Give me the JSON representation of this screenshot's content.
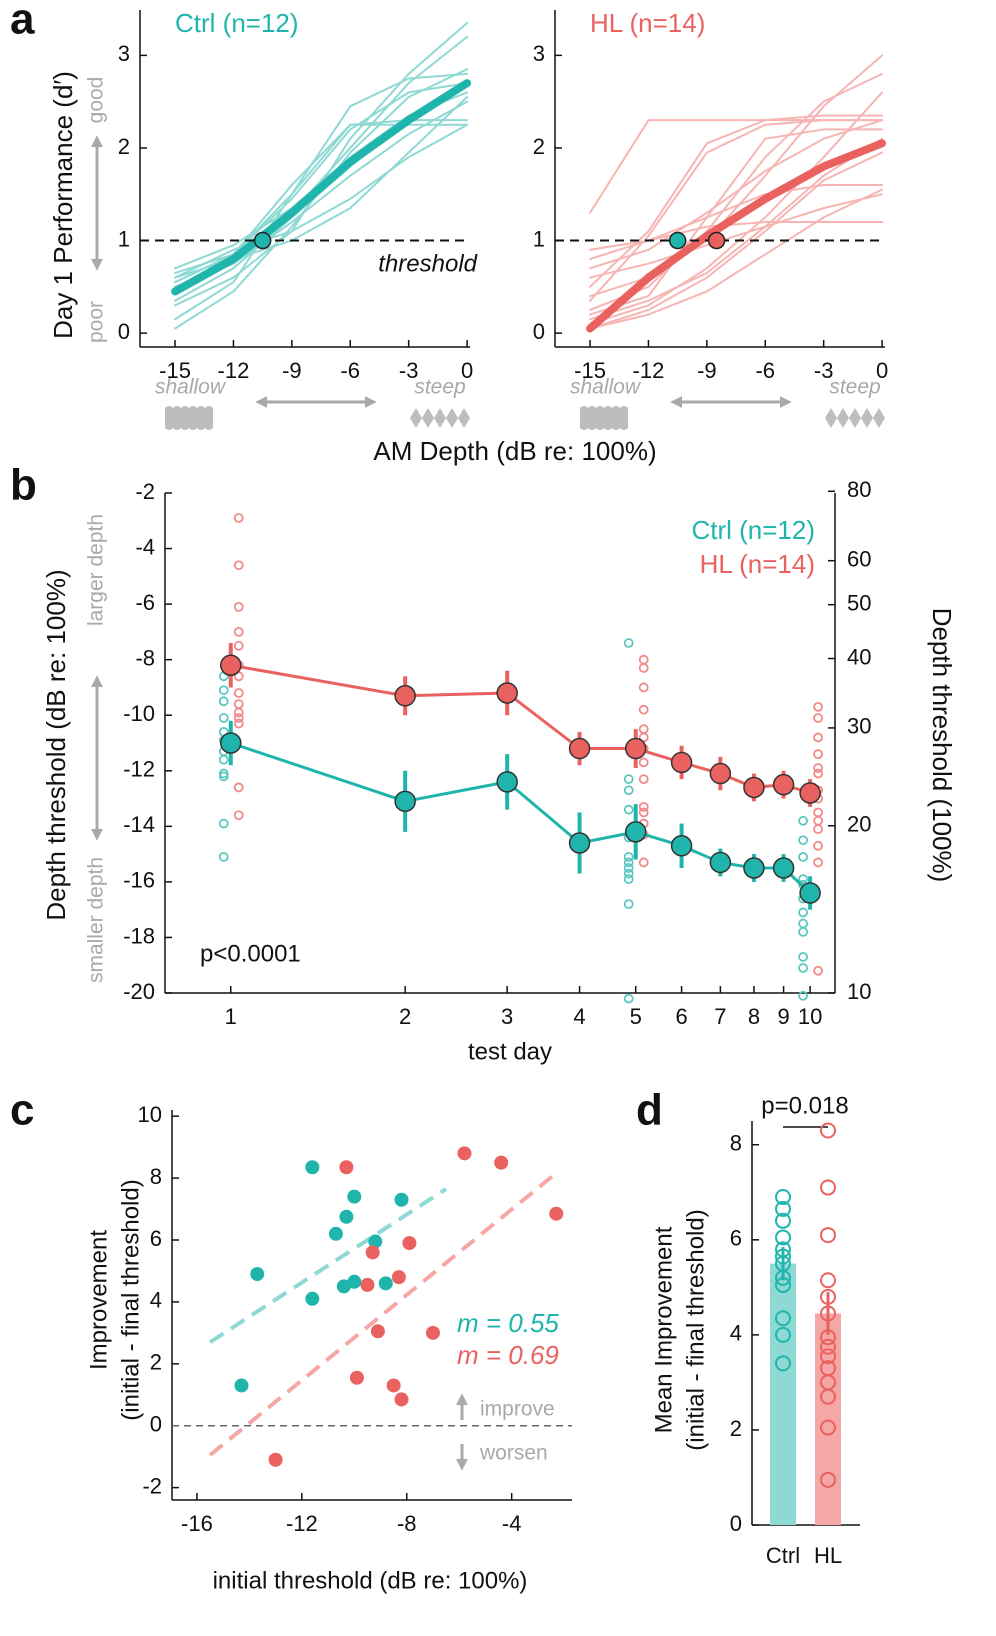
{
  "chart_data": [
    {
      "type": "line",
      "panel_label": "a",
      "title": "Ctrl (n=12)",
      "title_color": "#1fb5ac",
      "y_label": "Day 1 Performance (d′)",
      "x_label": "AM Depth (dB re: 100%)",
      "annotations": {
        "good": "good",
        "poor": "poor",
        "shallow": "shallow",
        "steep": "steep",
        "threshold": "threshold"
      },
      "x": [
        -15,
        -12,
        -9,
        -6,
        -3,
        0
      ],
      "xlim": [
        -16.8,
        0.15
      ],
      "xticks": [
        -15,
        -12,
        -9,
        -6,
        -3,
        0
      ],
      "ylim": [
        -0.15,
        3.49
      ],
      "yticks": [
        0,
        1,
        2,
        3
      ],
      "threshold": 1,
      "series": [
        {
          "color": "#8ed9d4",
          "values": [
            0.15,
            0.55,
            1.5,
            2.45,
            2.75,
            2.8
          ]
        },
        {
          "color": "#8ed9d4",
          "values": [
            0.3,
            0.6,
            1.1,
            2.1,
            2.8,
            3.35
          ]
        },
        {
          "color": "#8ed9d4",
          "values": [
            0.6,
            0.8,
            1.3,
            2.0,
            2.7,
            3.2
          ]
        },
        {
          "color": "#8ed9d4",
          "values": [
            0.65,
            0.85,
            1.5,
            2.25,
            2.3,
            2.3
          ]
        },
        {
          "color": "#8ed9d4",
          "values": [
            0.55,
            0.85,
            1.6,
            2.25,
            2.25,
            2.25
          ]
        },
        {
          "color": "#8ed9d4",
          "values": [
            0.7,
            0.95,
            1.35,
            1.9,
            2.35,
            2.6
          ]
        },
        {
          "color": "#8ed9d4",
          "values": [
            0.5,
            0.75,
            1.2,
            1.7,
            2.15,
            2.5
          ]
        },
        {
          "color": "#8ed9d4",
          "values": [
            0.35,
            0.7,
            1.25,
            1.8,
            2.3,
            2.7
          ]
        },
        {
          "color": "#8ed9d4",
          "values": [
            0.6,
            0.9,
            1.1,
            1.45,
            1.9,
            2.25
          ]
        },
        {
          "color": "#8ed9d4",
          "values": [
            0.05,
            0.45,
            1.15,
            1.95,
            2.55,
            2.85
          ]
        },
        {
          "color": "#8ed9d4",
          "values": [
            0.45,
            0.8,
            1.0,
            1.35,
            1.95,
            2.55
          ]
        },
        {
          "color": "#8ed9d4",
          "values": [
            0.55,
            0.85,
            1.45,
            2.2,
            2.6,
            2.7
          ]
        },
        {
          "color": "#1fb5ac",
          "bold": true,
          "values": [
            0.45,
            0.8,
            1.3,
            1.85,
            2.3,
            2.7
          ]
        }
      ],
      "markers": [
        {
          "x": -10.5,
          "y": 1,
          "color": "#1fb5ac"
        }
      ]
    },
    {
      "type": "line",
      "title": "HL (n=14)",
      "title_color": "#e9625f",
      "annotations": {
        "shallow": "shallow",
        "steep": "steep"
      },
      "x": [
        -15,
        -12,
        -9,
        -6,
        -3,
        0
      ],
      "xlim": [
        -16.8,
        0.15
      ],
      "xticks": [
        -15,
        -12,
        -9,
        -6,
        -3,
        0
      ],
      "ylim": [
        -0.15,
        3.49
      ],
      "yticks": [
        0,
        1,
        2,
        3
      ],
      "threshold": 1,
      "series": [
        {
          "color": "#f6b5b3",
          "values": [
            0.9,
            1.0,
            1.15,
            1.2,
            1.2,
            1.2
          ]
        },
        {
          "color": "#f6b5b3",
          "values": [
            0.8,
            1.0,
            1.25,
            1.5,
            1.6,
            1.6
          ]
        },
        {
          "color": "#f6b5b3",
          "values": [
            0.5,
            1.1,
            2.05,
            2.3,
            2.35,
            2.35
          ]
        },
        {
          "color": "#f6b5b3",
          "values": [
            1.3,
            2.3,
            2.3,
            2.3,
            2.3,
            2.3
          ]
        },
        {
          "color": "#f6b5b3",
          "values": [
            0.35,
            1.05,
            1.95,
            2.25,
            2.3,
            2.3
          ]
        },
        {
          "color": "#f6b5b3",
          "values": [
            0.2,
            0.4,
            1.25,
            2.1,
            2.2,
            2.2
          ]
        },
        {
          "color": "#f6b5b3",
          "values": [
            0.4,
            0.6,
            1.0,
            1.7,
            2.45,
            3.0
          ]
        },
        {
          "color": "#f6b5b3",
          "values": [
            0.25,
            0.5,
            1.1,
            1.9,
            2.5,
            2.8
          ]
        },
        {
          "color": "#f6b5b3",
          "values": [
            0.1,
            0.3,
            0.7,
            1.25,
            1.9,
            2.6
          ]
        },
        {
          "color": "#f6b5b3",
          "values": [
            0.15,
            0.35,
            0.65,
            1.15,
            1.7,
            2.1
          ]
        },
        {
          "color": "#f6b5b3",
          "values": [
            0.6,
            0.75,
            0.95,
            1.15,
            1.35,
            1.5
          ]
        },
        {
          "color": "#f6b5b3",
          "values": [
            0.05,
            0.25,
            0.6,
            1.1,
            1.65,
            1.95
          ]
        },
        {
          "color": "#f6b5b3",
          "values": [
            0.05,
            0.2,
            0.45,
            0.85,
            1.25,
            1.55
          ]
        },
        {
          "color": "#f6b5b3",
          "values": [
            0.7,
            0.9,
            1.3,
            1.75,
            2.1,
            2.3
          ]
        },
        {
          "color": "#e9625f",
          "bold": true,
          "values": [
            0.05,
            0.6,
            1.05,
            1.45,
            1.8,
            2.05
          ]
        }
      ],
      "markers": [
        {
          "x": -10.5,
          "y": 1,
          "color": "#1fb5ac"
        },
        {
          "x": -8.5,
          "y": 1,
          "color": "#e9625f"
        }
      ]
    },
    {
      "type": "errorbar",
      "panel_label": "b",
      "x_label": "test day",
      "y_label": "Depth threshold (dB re: 100%)",
      "y2_label": "Depth threshold (100%)",
      "annotations": {
        "larger": "larger depth",
        "smaller": "smaller depth",
        "p": "p<0.0001"
      },
      "x": [
        1,
        2,
        3,
        4,
        5,
        6,
        7,
        8,
        9,
        10
      ],
      "log_x": true,
      "xlim": [
        0.77,
        11.04
      ],
      "xticks": [
        1,
        2,
        3,
        4,
        5,
        6,
        7,
        8,
        9,
        10
      ],
      "ylim": [
        -20,
        -2
      ],
      "yticks": [
        -2,
        -4,
        -6,
        -8,
        -10,
        -12,
        -14,
        -16,
        -18,
        -20
      ],
      "y2lim": [
        10,
        79.43
      ],
      "y2ticks": [
        10,
        20,
        30,
        40,
        50,
        60,
        80
      ],
      "log_y2": true,
      "series": [
        {
          "name": "Ctrl (n=12)",
          "color": "#1fb5ac",
          "point_color": "#5cc7c0",
          "values": [
            -11,
            -13.1,
            -12.4,
            -14.6,
            -14.2,
            -14.7,
            -15.3,
            -15.5,
            -15.5,
            -16.4
          ],
          "errors": [
            0.8,
            1.1,
            1.0,
            1.1,
            1.0,
            0.8,
            0.5,
            0.5,
            0.5,
            0.6
          ],
          "individual_x": [
            1,
            5,
            10
          ],
          "individual": [
            [
              -8.6,
              -9.1,
              -9.5,
              -10.1,
              -10.6,
              -10.9,
              -11.3,
              -11.6,
              -12.1,
              -12.2,
              -13.9,
              -15.1
            ],
            [
              -7.4,
              -12.3,
              -12.7,
              -13.4,
              -14.4,
              -15.1,
              -15.3,
              -15.5,
              -15.7,
              -15.9,
              -16.8,
              -20.2
            ],
            [
              -13.8,
              -14.5,
              -15.1,
              -15.9,
              -16.1,
              -16.6,
              -17.1,
              -17.5,
              -17.8,
              -18.7,
              -19.1,
              -20.1
            ]
          ]
        },
        {
          "name": "HL (n=14)",
          "color": "#e9625f",
          "point_color": "#ef8a88",
          "values": [
            -8.2,
            -9.3,
            -9.2,
            -11.2,
            -11.2,
            -11.7,
            -12.1,
            -12.6,
            -12.5,
            -12.8
          ],
          "errors": [
            0.8,
            0.7,
            0.8,
            0.6,
            0.7,
            0.6,
            0.6,
            0.5,
            0.5,
            0.5
          ],
          "individual_x": [
            1,
            5,
            10
          ],
          "individual": [
            [
              -2.9,
              -4.6,
              -6.1,
              -7.0,
              -7.5,
              -8.2,
              -8.6,
              -9.2,
              -9.6,
              -9.9,
              -10.1,
              -10.3,
              -12.6,
              -13.6
            ],
            [
              -8.0,
              -8.3,
              -9.0,
              -9.8,
              -10.5,
              -10.8,
              -11.2,
              -11.7,
              -12.3,
              -13.3,
              -13.5,
              -13.9,
              -14.3,
              -15.3
            ],
            [
              -9.7,
              -10.1,
              -10.8,
              -11.4,
              -11.9,
              -12.1,
              -12.7,
              -13.0,
              -13.5,
              -13.8,
              -14.1,
              -14.7,
              -15.3,
              -19.2
            ]
          ]
        }
      ]
    },
    {
      "type": "scatter",
      "panel_label": "c",
      "x_label": "initial threshold (dB re: 100%)",
      "y_label": [
        "Improvement",
        "(initial - final threshold)"
      ],
      "annotations": {
        "improve": "improve",
        "worsen": "worsen"
      },
      "xlim": [
        -16.95,
        -1.7
      ],
      "xticks": [
        -16,
        -12,
        -8,
        -4
      ],
      "ylim": [
        -2.4,
        10.2
      ],
      "yticks": [
        -2,
        0,
        2,
        4,
        6,
        8,
        10
      ],
      "reference_line": 0,
      "series": [
        {
          "color": "#1fb5ac",
          "fit_color": "#8ed9d4",
          "slope_label": "m = 0.55",
          "x": [
            -14.3,
            -13.7,
            -11.6,
            -11.6,
            -10.7,
            -10.4,
            -10.3,
            -10.0,
            -10.0,
            -9.2,
            -8.8,
            -8.2
          ],
          "values": [
            1.3,
            4.9,
            8.35,
            4.1,
            6.2,
            4.5,
            6.75,
            7.4,
            4.65,
            5.95,
            4.6,
            7.3
          ],
          "fit_x": [
            -15.5,
            -6.5
          ],
          "fit_values": [
            2.7,
            7.65
          ]
        },
        {
          "color": "#e9625f",
          "fit_color": "#f4a7a5",
          "slope_label": "m = 0.69",
          "x": [
            -13.0,
            -10.3,
            -9.9,
            -9.5,
            -9.3,
            -9.1,
            -8.5,
            -8.3,
            -8.2,
            -7.9,
            -7.0,
            -5.8,
            -4.4,
            -2.3
          ],
          "values": [
            -1.1,
            8.35,
            1.55,
            4.55,
            5.6,
            3.05,
            1.3,
            4.8,
            0.85,
            5.9,
            3.0,
            8.8,
            8.5,
            6.85
          ],
          "fit_x": [
            -15.5,
            -2.2
          ],
          "fit_values": [
            -0.95,
            8.23
          ]
        }
      ]
    },
    {
      "type": "bar",
      "panel_label": "d",
      "y_label": [
        "Mean Improvement",
        "(initial - final threshold)"
      ],
      "annotation": "p=0.018",
      "categories": [
        "Ctrl",
        "HL"
      ],
      "values": [
        5.5,
        4.45
      ],
      "errors": [
        0.35,
        0.45
      ],
      "colors": [
        "#8ed9d4",
        "#f4a7a5"
      ],
      "point_colors": [
        "#1fb5ac",
        "#e9625f"
      ],
      "ylim": [
        0,
        8.5
      ],
      "yticks": [
        0,
        2,
        4,
        6,
        8
      ],
      "individual": [
        [
          6.9,
          6.65,
          6.4,
          6.05,
          5.8,
          5.65,
          5.5,
          5.2,
          5.05,
          4.35,
          4.0,
          3.4
        ],
        [
          8.3,
          7.1,
          6.1,
          5.15,
          4.8,
          4.45,
          3.95,
          3.75,
          3.55,
          3.3,
          3.0,
          2.7,
          2.05,
          0.95
        ]
      ]
    }
  ]
}
